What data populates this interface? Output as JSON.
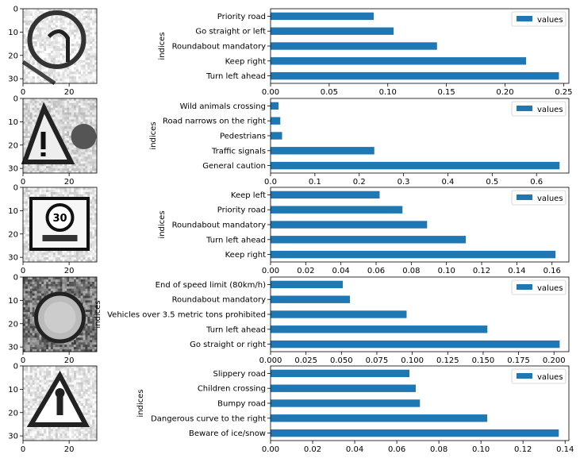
{
  "chart_data": [
    {
      "type": "bar",
      "orientation": "horizontal",
      "image_axes": {
        "xticks": [
          "0",
          "20"
        ],
        "yticks": [
          "0",
          "10",
          "20",
          "30"
        ],
        "xlim": [
          0,
          32
        ],
        "ylim": [
          32,
          0
        ]
      },
      "ylabel": "indices",
      "categories": [
        "Turn left ahead",
        "Keep right",
        "Roundabout mandatory",
        "Go straight or left",
        "Priority road"
      ],
      "series": [
        {
          "name": "values",
          "values": [
            0.246,
            0.218,
            0.142,
            0.105,
            0.088
          ]
        }
      ],
      "xlim": [
        0,
        0.2545
      ],
      "xticks": [
        "0.00",
        "0.05",
        "0.10",
        "0.15",
        "0.20",
        "0.25"
      ],
      "legend": "top-right"
    },
    {
      "type": "bar",
      "orientation": "horizontal",
      "image_axes": {
        "xticks": [
          "0",
          "20"
        ],
        "yticks": [
          "0",
          "10",
          "20",
          "30"
        ],
        "xlim": [
          0,
          32
        ],
        "ylim": [
          32,
          0
        ]
      },
      "ylabel": "indices",
      "categories": [
        "General caution",
        "Traffic signals",
        "Pedestrians",
        "Road narrows on the right",
        "Wild animals crossing"
      ],
      "series": [
        {
          "name": "values",
          "values": [
            0.652,
            0.234,
            0.026,
            0.022,
            0.018
          ]
        }
      ],
      "xlim": [
        0,
        0.673
      ],
      "xticks": [
        "0.0",
        "0.1",
        "0.2",
        "0.3",
        "0.4",
        "0.5",
        "0.6"
      ],
      "legend": "top-right"
    },
    {
      "type": "bar",
      "orientation": "horizontal",
      "image_axes": {
        "xticks": [
          "0",
          "20"
        ],
        "yticks": [
          "0",
          "10",
          "20",
          "30"
        ],
        "xlim": [
          0,
          32
        ],
        "ylim": [
          32,
          0
        ]
      },
      "ylabel": "indices",
      "categories": [
        "Keep right",
        "Turn left ahead",
        "Roundabout mandatory",
        "Priority road",
        "Keep left"
      ],
      "series": [
        {
          "name": "values",
          "values": [
            0.162,
            0.111,
            0.089,
            0.075,
            0.062
          ]
        }
      ],
      "xlim": [
        0,
        0.1696
      ],
      "xticks": [
        "0.00",
        "0.02",
        "0.04",
        "0.06",
        "0.08",
        "0.10",
        "0.12",
        "0.14",
        "0.16"
      ],
      "legend": "top-right"
    },
    {
      "type": "bar",
      "orientation": "horizontal",
      "image_axes": {
        "xticks": [
          "0",
          "20"
        ],
        "yticks": [
          "0",
          "10",
          "20",
          "30"
        ],
        "xlim": [
          0,
          32
        ],
        "ylim": [
          32,
          0
        ]
      },
      "ylabel": "indices",
      "categories": [
        "Go straight or right",
        "Turn left ahead",
        "Vehicles over 3.5 metric tons prohibited",
        "Roundabout mandatory",
        "End of speed limit (80km/h)"
      ],
      "series": [
        {
          "name": "values",
          "values": [
            0.204,
            0.153,
            0.096,
            0.056,
            0.051
          ]
        }
      ],
      "xlim": [
        0,
        0.2105
      ],
      "xticks": [
        "0.000",
        "0.025",
        "0.050",
        "0.075",
        "0.100",
        "0.125",
        "0.150",
        "0.175",
        "0.200"
      ],
      "legend": "top-right"
    },
    {
      "type": "bar",
      "orientation": "horizontal",
      "image_axes": {
        "xticks": [
          "0",
          "20"
        ],
        "yticks": [
          "0",
          "10",
          "20",
          "30"
        ],
        "xlim": [
          0,
          32
        ],
        "ylim": [
          32,
          0
        ]
      },
      "ylabel": "indices",
      "categories": [
        "Beware of ice/snow",
        "Dangerous curve to the right",
        "Bumpy road",
        "Children crossing",
        "Slippery road"
      ],
      "series": [
        {
          "name": "values",
          "values": [
            0.137,
            0.103,
            0.071,
            0.069,
            0.066
          ]
        }
      ],
      "xlim": [
        0,
        0.1418
      ],
      "xticks": [
        "0.00",
        "0.02",
        "0.04",
        "0.06",
        "0.08",
        "0.10",
        "0.12",
        "0.14"
      ],
      "legend": "top-right"
    }
  ],
  "colors": {
    "bar": "#1f77b4",
    "axis": "#000000",
    "legend_border": "#cccccc"
  },
  "thumbnails": [
    {
      "depicts": "turn-left-ahead-sign"
    },
    {
      "depicts": "general-caution-sign"
    },
    {
      "depicts": "speed-limit-30-sign"
    },
    {
      "depicts": "circular-regulatory-sign"
    },
    {
      "depicts": "triangular-warning-sign"
    }
  ]
}
